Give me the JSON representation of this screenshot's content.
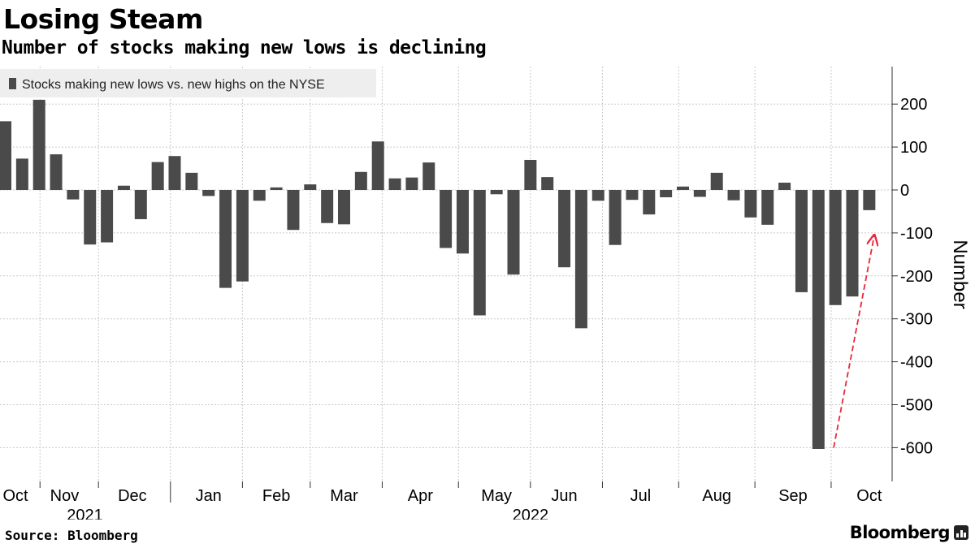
{
  "header": {
    "title": "Losing Steam",
    "subtitle": "Number of stocks making new lows is declining"
  },
  "footer": {
    "source": "Source: Bloomberg",
    "logo_text": "Bloomberg"
  },
  "colors": {
    "bar": "#4a4a4a",
    "arrow": "#e8283a",
    "grid": "#c8c8c8",
    "legend_bg": "#eeeeee"
  },
  "chart_data": {
    "type": "bar",
    "title": "Losing Steam",
    "subtitle": "Number of stocks making new lows is declining",
    "legend": "Stocks making new lows vs. new highs on the NYSE",
    "legend_position": "top-left",
    "ylabel": "Number",
    "y_axis_side": "right",
    "ylim": [
      -680,
      290
    ],
    "yticks": [
      200,
      100,
      0,
      -100,
      -200,
      -300,
      -400,
      -500,
      -600
    ],
    "grid": true,
    "x_month_labels": [
      "Oct",
      "Nov",
      "Dec",
      "Jan",
      "Feb",
      "Mar",
      "Apr",
      "May",
      "Jun",
      "Jul",
      "Aug",
      "Sep",
      "Oct"
    ],
    "x_month_bar_index": [
      0.6,
      3.5,
      7.5,
      12,
      16,
      20,
      24.5,
      29,
      33,
      37.5,
      42,
      46.5,
      51
    ],
    "x_year_labels": [
      "2021",
      "2022"
    ],
    "x_year_bar_index": [
      4.7,
      31
    ],
    "values": [
      160,
      73,
      210,
      83,
      -22,
      -127,
      -122,
      10,
      -68,
      65,
      79,
      40,
      -14,
      -228,
      -213,
      -25,
      6,
      -93,
      13,
      -77,
      -80,
      42,
      113,
      27,
      29,
      64,
      -135,
      -148,
      -292,
      -10,
      -197,
      70,
      30,
      -180,
      -322,
      -25,
      -128,
      -23,
      -57,
      -17,
      8,
      -16,
      40,
      -24,
      -64,
      -81,
      17,
      -238,
      -603,
      -268,
      -248,
      -47
    ],
    "annotations": [
      {
        "type": "arrow",
        "style": "dashed",
        "from": [
          48.9,
          -600
        ],
        "to": [
          51.3,
          -105
        ]
      }
    ]
  }
}
